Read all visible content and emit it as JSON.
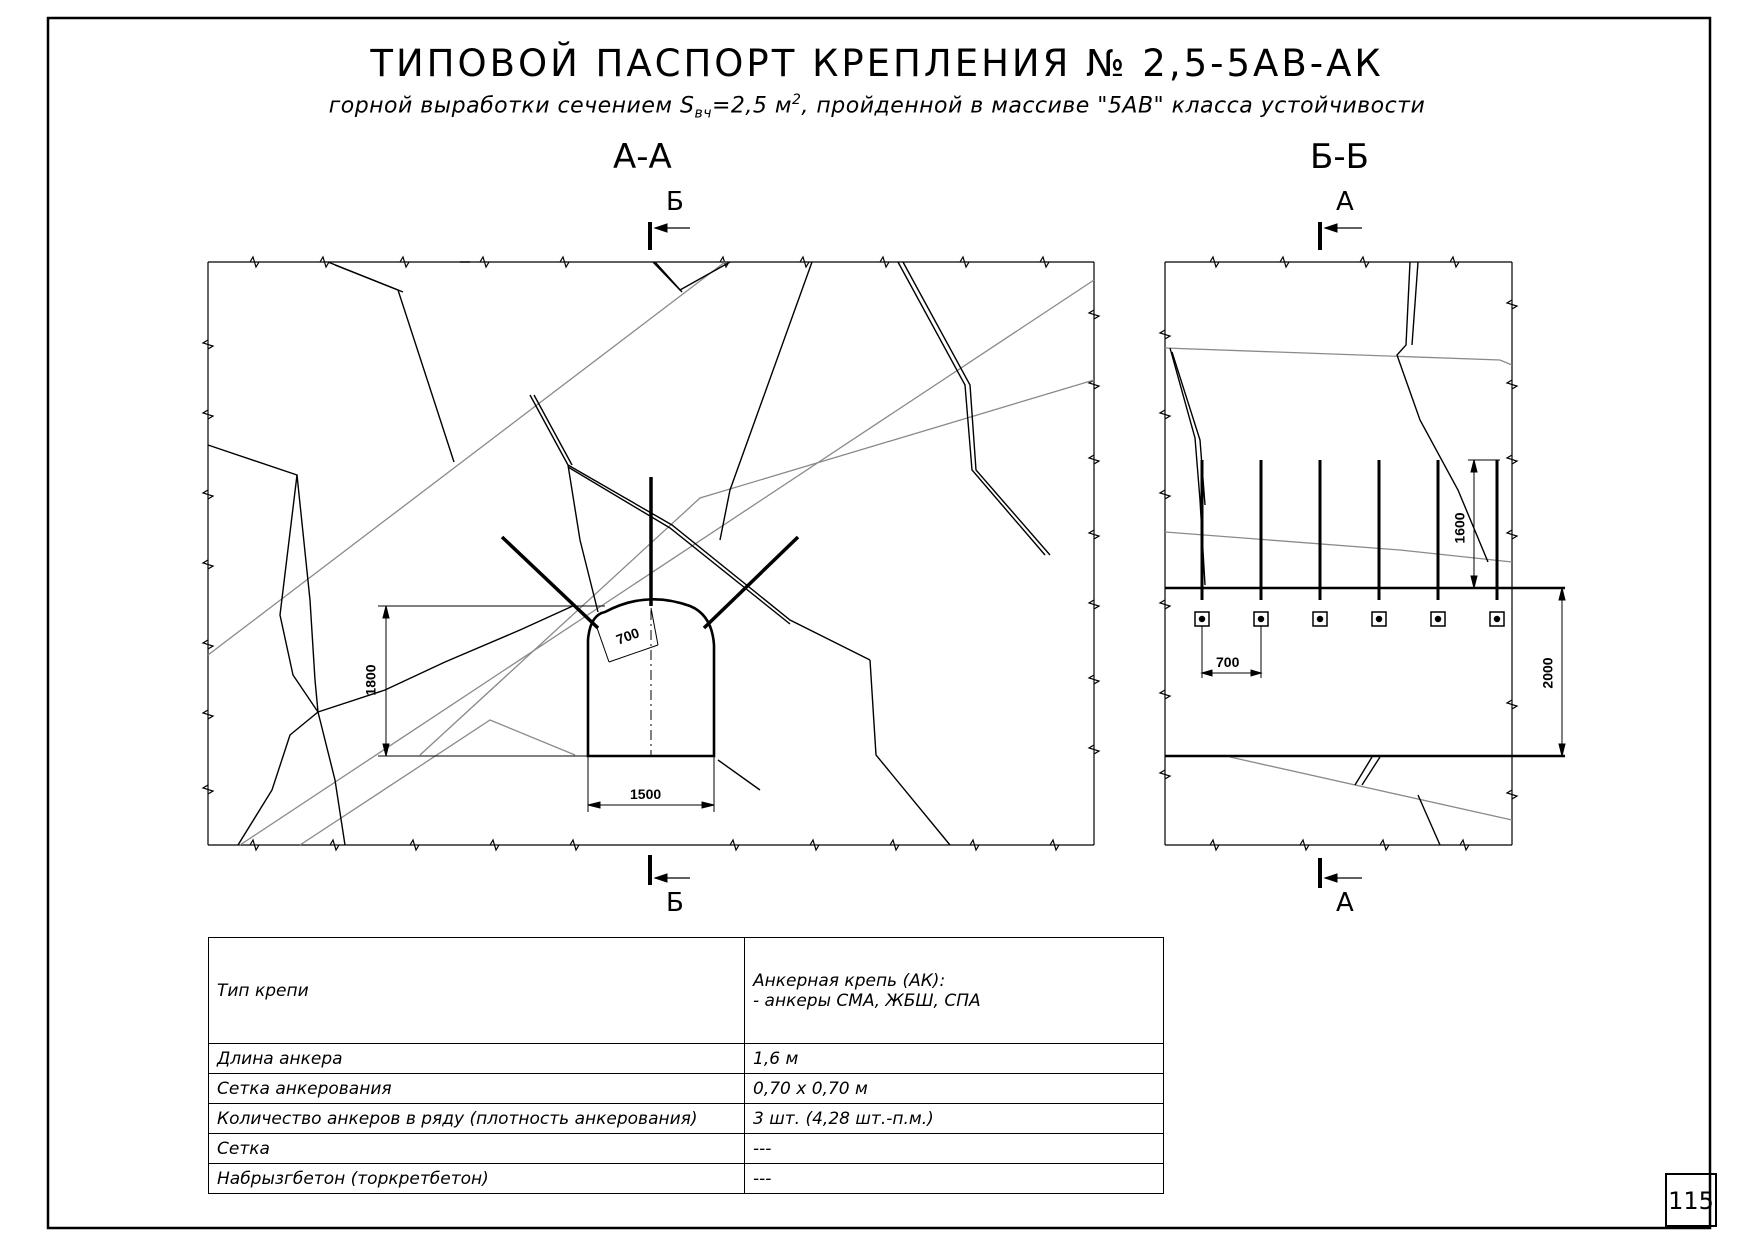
{
  "title": {
    "main": "ТИПОВОЙ ПАСПОРТ КРЕПЛЕНИЯ № 2,5-5АВ-АК",
    "sub_prefix": "горной выработки сечением S",
    "sub_subscript": "вч",
    "sub_mid": "=2,5 м",
    "sub_superscript": "2",
    "sub_suffix": ", пройденной в массиве \"5АВ\" класса устойчивости"
  },
  "section_aa": {
    "label": "А-А",
    "cut_top": "Б",
    "cut_bottom": "Б",
    "dim_width": "1500",
    "dim_height": "1800",
    "dim_spacing": "700"
  },
  "section_bb": {
    "label": "Б-Б",
    "cut_top": "А",
    "cut_bottom": "А",
    "dim_anchor_length": "1600",
    "dim_height": "2000",
    "dim_spacing": "700"
  },
  "specs": {
    "rows": [
      {
        "label": "Тип крепи",
        "value": "Анкерная крепь (АК):\n- анкеры СМА, ЖБШ, СПА"
      },
      {
        "label": "Длина анкера",
        "value": "1,6 м"
      },
      {
        "label": "Сетка анкерования",
        "value": "0,70 х 0,70 м"
      },
      {
        "label": "Количество анкеров в ряду (плотность анкерования)",
        "value": "3 шт. (4,28 шт.-п.м.)"
      },
      {
        "label": "Сетка",
        "value": "---"
      },
      {
        "label": "Набрызгбетон (торкретбетон)",
        "value": "---"
      }
    ]
  },
  "page_number": "115"
}
